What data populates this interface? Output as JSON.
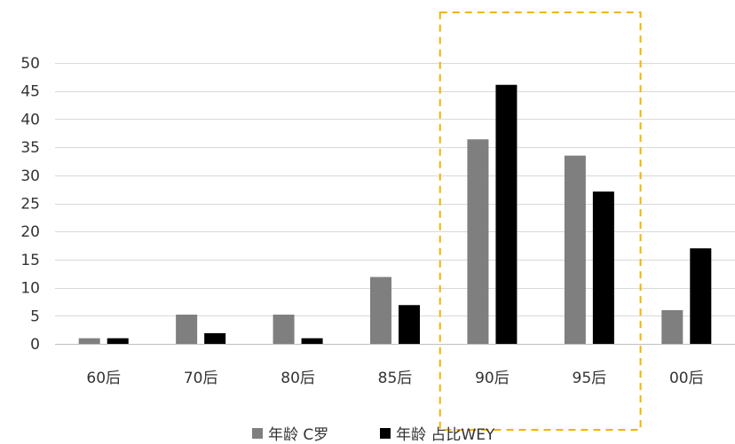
{
  "chart_data": {
    "type": "bar",
    "categories": [
      "60后",
      "70后",
      "80后",
      "85后",
      "90后",
      "95后",
      "00后"
    ],
    "series": [
      {
        "name": "年龄 C罗",
        "values": [
          1,
          5.2,
          5.2,
          11.9,
          36.4,
          33.5,
          6
        ],
        "color": "#7f7f7f"
      },
      {
        "name": "年龄 占比WEY",
        "values": [
          1,
          1.9,
          1,
          6.9,
          46.1,
          27.1,
          17
        ],
        "color": "#000000"
      }
    ],
    "ylim": [
      0,
      50
    ],
    "yticks": [
      0,
      5,
      10,
      15,
      20,
      25,
      30,
      35,
      40,
      45,
      50
    ],
    "grid": true,
    "legend_position": "bottom",
    "highlight": {
      "categories": [
        "90后",
        "95后"
      ],
      "style": "dashed",
      "color": "#f2b400"
    },
    "title": "",
    "xlabel": "",
    "ylabel": ""
  }
}
